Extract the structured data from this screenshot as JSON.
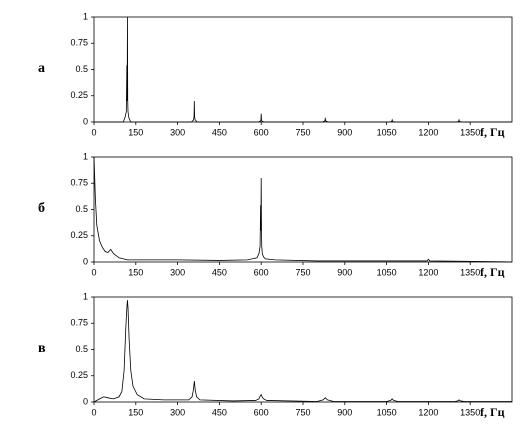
{
  "chart_data": [
    {
      "type": "line",
      "panel_label": "а",
      "xlabel": "f, Гц",
      "xlim": [
        0,
        1500
      ],
      "ylim": [
        0,
        1
      ],
      "xticks": [
        0,
        150,
        300,
        450,
        600,
        750,
        900,
        1050,
        1200,
        1350
      ],
      "yticks": [
        0,
        0.25,
        0.5,
        0.75,
        1
      ],
      "color": "#000000",
      "x": [
        0,
        105,
        112,
        116,
        118,
        119,
        120,
        121,
        122,
        125,
        132,
        350,
        357,
        359,
        360,
        361,
        363,
        370,
        590,
        598,
        599,
        600,
        601,
        602,
        610,
        820,
        828,
        829,
        830,
        831,
        832,
        840,
        1060,
        1068,
        1069,
        1070,
        1071,
        1072,
        1080,
        1300,
        1308,
        1309,
        1310,
        1311,
        1312,
        1320,
        1500
      ],
      "values": [
        0,
        0,
        0.05,
        0.1,
        0.54,
        0.2,
        1.0,
        0.2,
        0.1,
        0.04,
        0,
        0,
        0.02,
        0.05,
        0.2,
        0.05,
        0.02,
        0,
        0,
        0.01,
        0.02,
        0.08,
        0.02,
        0.01,
        0,
        0,
        0.01,
        0.01,
        0.04,
        0.01,
        0.01,
        0,
        0,
        0.005,
        0.01,
        0.02,
        0.01,
        0.005,
        0,
        0,
        0.005,
        0.01,
        0.02,
        0.01,
        0.005,
        0,
        0
      ]
    },
    {
      "type": "line",
      "panel_label": "б",
      "xlabel": "f, Гц",
      "xlim": [
        0,
        1500
      ],
      "ylim": [
        0,
        1
      ],
      "xticks": [
        0,
        150,
        300,
        450,
        600,
        750,
        900,
        1050,
        1200,
        1350
      ],
      "yticks": [
        0,
        0.25,
        0.5,
        0.75,
        1
      ],
      "color": "#000000",
      "x": [
        0,
        5,
        10,
        20,
        30,
        40,
        50,
        60,
        70,
        90,
        120,
        200,
        300,
        450,
        550,
        585,
        592,
        596,
        598,
        599,
        600,
        601,
        602,
        604,
        608,
        615,
        650,
        800,
        1000,
        1195,
        1200,
        1205,
        1400,
        1500
      ],
      "values": [
        1,
        0.6,
        0.35,
        0.2,
        0.14,
        0.1,
        0.09,
        0.12,
        0.08,
        0.04,
        0.02,
        0.02,
        0.02,
        0.015,
        0.02,
        0.04,
        0.08,
        0.15,
        0.54,
        0.3,
        0.8,
        0.3,
        0.15,
        0.08,
        0.05,
        0.03,
        0.02,
        0.01,
        0.01,
        0.01,
        0.025,
        0.01,
        0.005,
        0
      ]
    },
    {
      "type": "line",
      "panel_label": "в",
      "xlabel": "f, Гц",
      "xlim": [
        0,
        1500
      ],
      "ylim": [
        0,
        1
      ],
      "xticks": [
        0,
        150,
        300,
        450,
        600,
        750,
        900,
        1050,
        1200,
        1350
      ],
      "yticks": [
        0,
        0.25,
        0.5,
        0.75,
        1
      ],
      "color": "#000000",
      "x": [
        0,
        20,
        35,
        50,
        70,
        90,
        100,
        108,
        114,
        118,
        120,
        122,
        126,
        132,
        140,
        155,
        180,
        250,
        340,
        352,
        357,
        360,
        363,
        368,
        380,
        500,
        580,
        592,
        597,
        600,
        603,
        608,
        620,
        800,
        822,
        830,
        838,
        860,
        1050,
        1065,
        1070,
        1075,
        1090,
        1295,
        1305,
        1310,
        1315,
        1330,
        1500
      ],
      "values": [
        0,
        0.03,
        0.05,
        0.04,
        0.03,
        0.05,
        0.1,
        0.3,
        0.7,
        0.9,
        0.97,
        0.9,
        0.6,
        0.3,
        0.15,
        0.07,
        0.03,
        0.02,
        0.02,
        0.05,
        0.12,
        0.2,
        0.12,
        0.05,
        0.02,
        0.01,
        0.015,
        0.03,
        0.06,
        0.07,
        0.05,
        0.03,
        0.015,
        0.005,
        0.02,
        0.04,
        0.02,
        0.005,
        0.005,
        0.015,
        0.03,
        0.015,
        0.005,
        0.005,
        0.01,
        0.02,
        0.01,
        0.005,
        0.005
      ]
    }
  ]
}
